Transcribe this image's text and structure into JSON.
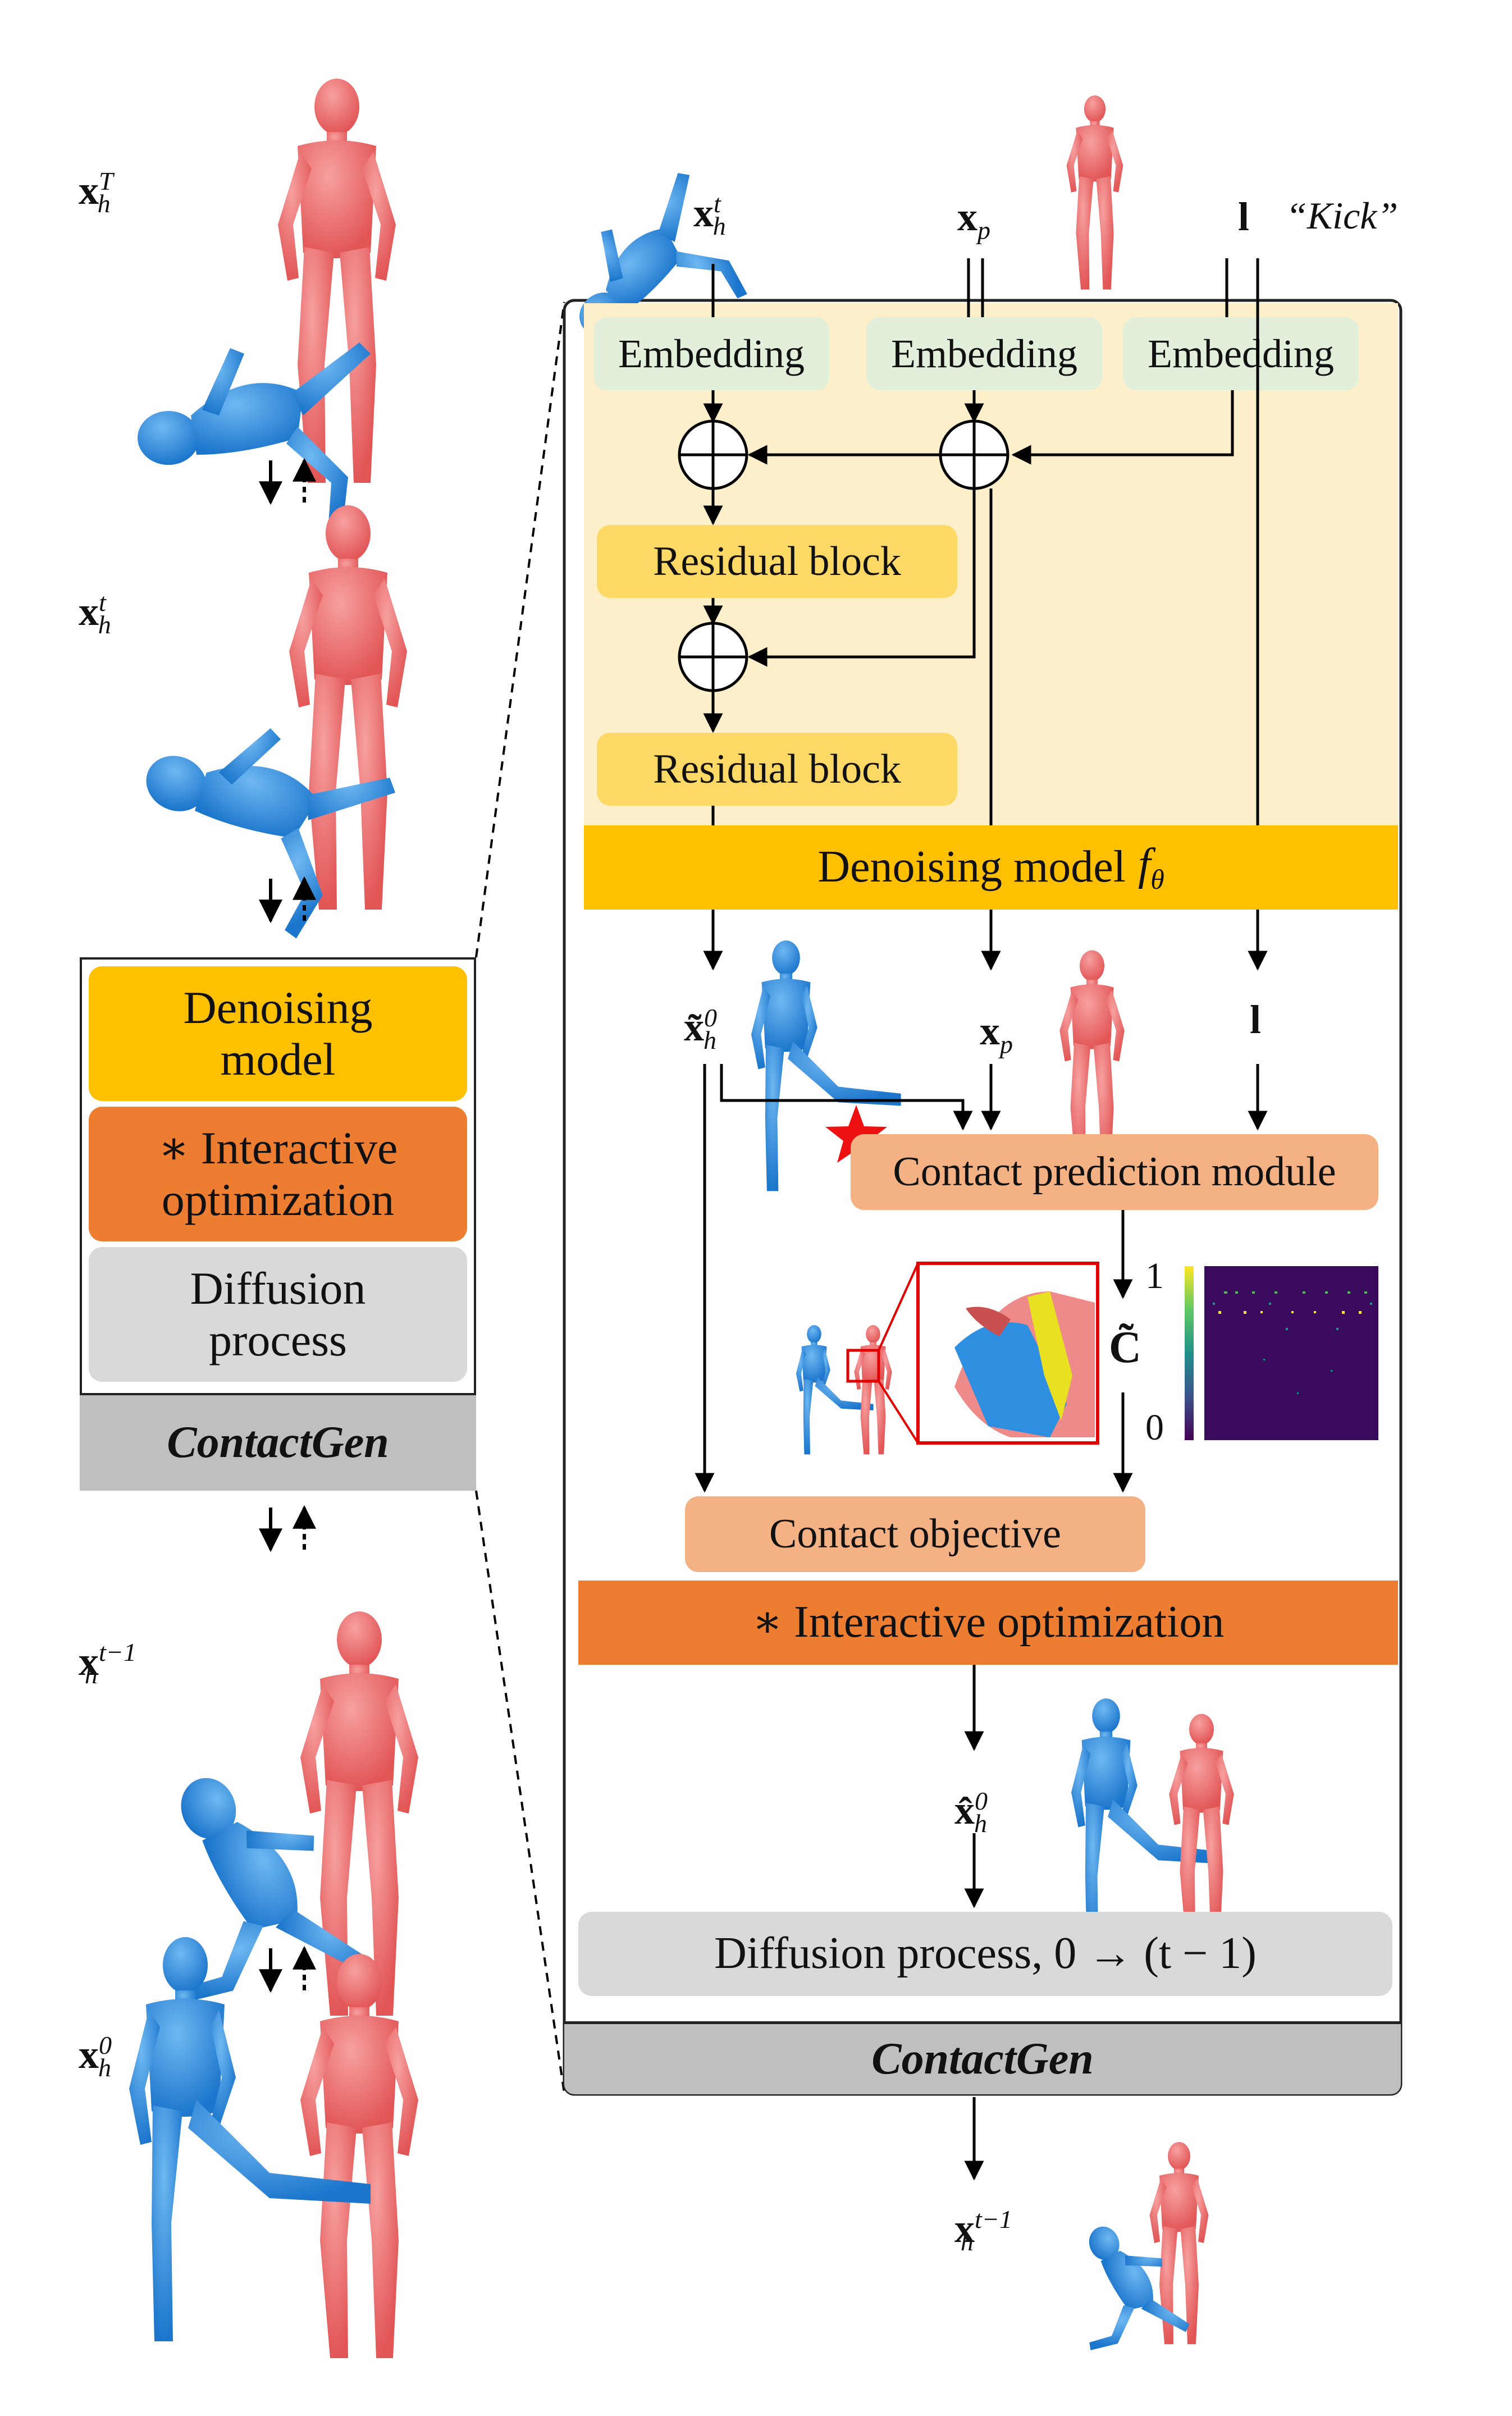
{
  "colors": {
    "denoise_yellow": "#FFC000",
    "denoise_light": "#FCEFC9",
    "residual": "#FFD966",
    "embedding": "#E2EFDA",
    "interactive_orange": "#ED7D31",
    "interactive_light": "#F8E0D2",
    "contact_module": "#F4B183",
    "diffusion_gray": "#D9D9D9",
    "contactgen_gray": "#BFBFBF",
    "human_red": "#EE6A6A",
    "human_blue": "#2E8FE0",
    "star_red": "#EE1111"
  },
  "left": {
    "labels": {
      "xT": {
        "base": "x",
        "sub": "h",
        "sup": "T"
      },
      "xt": {
        "base": "x",
        "sub": "h",
        "sup": "t"
      },
      "xtm1": {
        "base": "x",
        "sub": "h",
        "sup": "t−1"
      },
      "x0": {
        "base": "x",
        "sub": "h",
        "sup": "0"
      }
    },
    "stack": {
      "denoising": "Denoising model",
      "interactive": "∗ Interactive optimization",
      "diffusion": "Diffusion process",
      "title": "ContactGen"
    }
  },
  "right": {
    "inputs": {
      "xh": {
        "base": "x",
        "sub": "h",
        "sup": "t"
      },
      "xp": {
        "base": "x",
        "sub": "p"
      },
      "l": "l",
      "kick": "“Kick”"
    },
    "embedding": [
      "Embedding",
      "Embedding",
      "Embedding"
    ],
    "residual": [
      "Residual block",
      "Residual block"
    ],
    "denoising_model": "Denoising model",
    "f_theta": {
      "base": "f",
      "sub": "θ"
    },
    "mid": {
      "x0_tilde": {
        "base": "x̃",
        "sub": "h",
        "sup": "0"
      },
      "xp": {
        "base": "x",
        "sub": "p"
      },
      "l": "l"
    },
    "contact_prediction": "Contact prediction module",
    "c_tilde": "C̃",
    "colorbar": {
      "max": "1",
      "min": "0"
    },
    "contact_objective": "Contact objective",
    "interactive_opt": "∗ Interactive optimization",
    "x0_hat": {
      "base": "x̂",
      "sub": "h",
      "sup": "0"
    },
    "diffusion": "Diffusion process, 0 → (t − 1)",
    "contactgen": "ContactGen",
    "output": {
      "base": "x",
      "sub": "h",
      "sup": "t−1"
    }
  }
}
